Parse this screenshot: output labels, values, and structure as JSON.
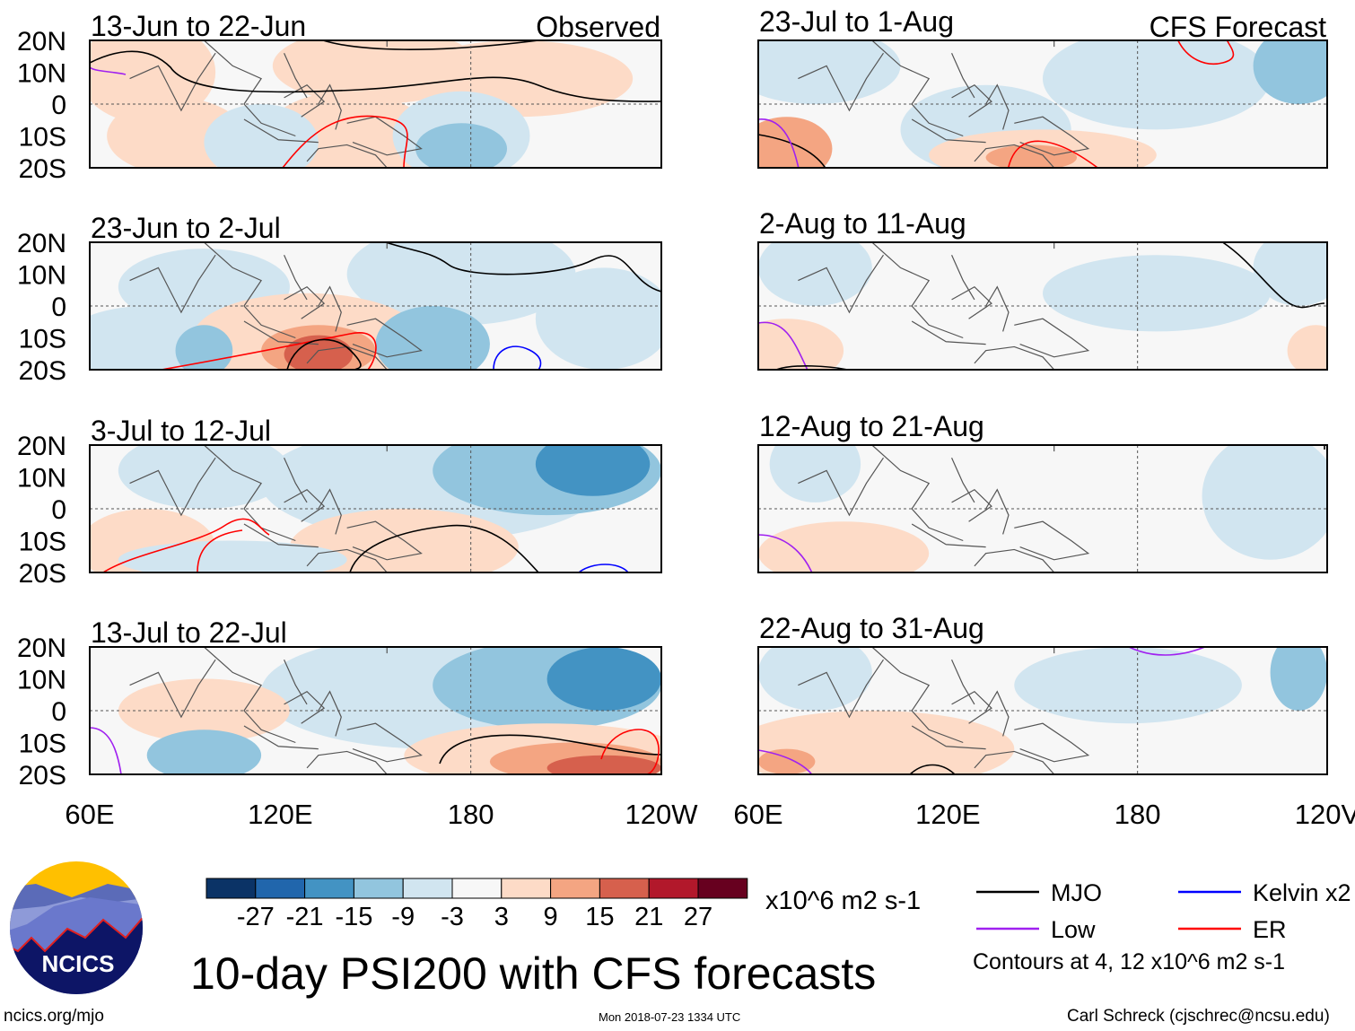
{
  "chart_data": {
    "type": "heatmap",
    "title": "10-day PSI200 with CFS forecasts",
    "observed_label": "Observed",
    "forecast_label": "CFS Forecast",
    "lat_ticks": [
      "20N",
      "10N",
      "0",
      "10S",
      "20S"
    ],
    "lon_ticks": [
      "60E",
      "120E",
      "180",
      "120W"
    ],
    "lon_ticks_right": [
      "60E",
      "120E",
      "180",
      "120V"
    ],
    "panels_observed": [
      "13-Jun to 22-Jun",
      "23-Jun to 2-Jul",
      "3-Jul to 12-Jul",
      "13-Jul to 22-Jul"
    ],
    "panels_forecast": [
      "23-Jul to 1-Aug",
      "2-Aug to 11-Aug",
      "12-Aug to 21-Aug",
      "22-Aug to 31-Aug"
    ],
    "colorbar": {
      "ticks": [
        "-27",
        "-21",
        "-15",
        "-9",
        "-3",
        "3",
        "9",
        "15",
        "21",
        "27"
      ],
      "colors": [
        "#0b3366",
        "#2166ac",
        "#4393c3",
        "#92c5de",
        "#d1e5f0",
        "#f7f7f7",
        "#fddbc7",
        "#f4a582",
        "#d6604d",
        "#b2182b",
        "#67001f"
      ],
      "units": "x10^6 m2 s-1"
    },
    "legend": [
      {
        "name": "MJO",
        "color": "#000000"
      },
      {
        "name": "Kelvin x2",
        "color": "#0000ff"
      },
      {
        "name": "Low",
        "color": "#a020f0"
      },
      {
        "name": "ER",
        "color": "#ff0000"
      }
    ],
    "contour_note": "Contours at 4, 12 x10^6 m2 s-1"
  },
  "footer": {
    "url": "ncics.org/mjo",
    "timestamp": "Mon 2018-07-23 1334 UTC",
    "author": "Carl Schreck (cjschrec@ncsu.edu)",
    "logo_text": "NCICS"
  }
}
